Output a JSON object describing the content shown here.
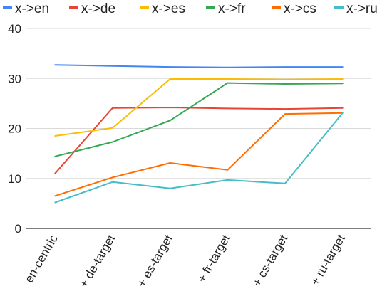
{
  "chart_data": {
    "type": "line",
    "categories": [
      "en-centric",
      "+ de-target",
      "+ es-target",
      "+ fr-target",
      "+ cs-target",
      "+ ru-target"
    ],
    "series": [
      {
        "name": "x->en",
        "color": "#4285F4",
        "values": [
          32.7,
          32.5,
          32.3,
          32.2,
          32.3,
          32.3
        ]
      },
      {
        "name": "x->de",
        "color": "#EA4335",
        "values": [
          11.0,
          24.1,
          24.2,
          24.0,
          23.9,
          24.1
        ]
      },
      {
        "name": "x->es",
        "color": "#FBBC04",
        "values": [
          18.5,
          20.1,
          29.9,
          29.9,
          29.8,
          29.9
        ]
      },
      {
        "name": "x->fr",
        "color": "#34A853",
        "values": [
          14.4,
          17.3,
          21.6,
          29.1,
          28.9,
          29.0
        ]
      },
      {
        "name": "x->cs",
        "color": "#FF6D01",
        "values": [
          6.5,
          10.2,
          13.1,
          11.7,
          22.9,
          23.1
        ]
      },
      {
        "name": "x->ru",
        "color": "#46BDC6",
        "values": [
          5.2,
          9.3,
          8.0,
          9.7,
          9.0,
          23.1
        ]
      }
    ],
    "yticks": [
      0,
      10,
      20,
      30,
      40
    ],
    "ylim": [
      0,
      40
    ],
    "title": "",
    "xlabel": "",
    "ylabel": "",
    "grid": true,
    "legend_position": "top"
  }
}
